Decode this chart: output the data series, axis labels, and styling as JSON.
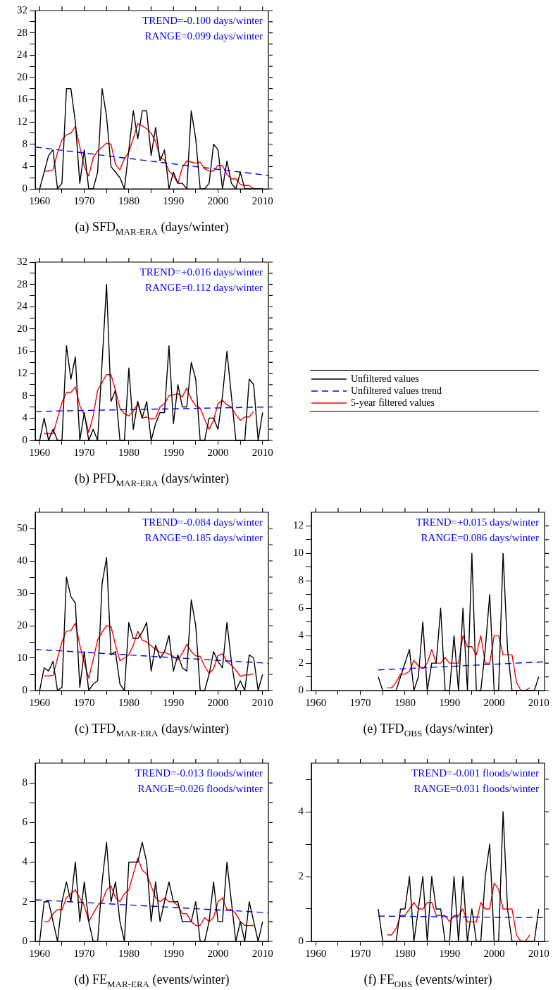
{
  "chart_data": [
    {
      "type": "line",
      "xlabel": "(a) SFD$_{MAR-ERA}$ (days/winter)",
      "annotations": [
        "TREND=-0.100 days/winter",
        "RANGE=0.099 days/winter"
      ],
      "xlim": [
        1959,
        2011.3
      ],
      "xticks": [
        1960,
        {
          "value": 1965,
          "label": null
        },
        1970,
        {
          "value": 1975,
          "label": null
        },
        1980,
        {
          "value": 1985,
          "label": null
        },
        1990,
        {
          "value": 1995,
          "label": null
        },
        2000,
        {
          "value": 2005,
          "label": null
        },
        2010
      ],
      "ylim": [
        0,
        32
      ],
      "yticks": [
        0,
        {
          "value": 2,
          "label": null
        },
        4,
        {
          "value": 6,
          "label": null
        },
        8,
        {
          "value": 10,
          "label": null
        },
        12,
        {
          "value": 14,
          "label": null
        },
        16,
        {
          "value": 18,
          "label": null
        },
        20,
        {
          "value": 22,
          "label": null
        },
        24,
        {
          "value": 26,
          "label": null
        },
        28,
        {
          "value": 30,
          "label": null
        },
        32
      ],
      "series": [
        {
          "color": "#000000",
          "x": [
            1960,
            1961,
            1962,
            1963,
            1964,
            1965,
            1966,
            1967,
            1968,
            1969,
            1970,
            1971,
            1972,
            1973,
            1974,
            1975,
            1976,
            1977,
            1978,
            1979,
            1980,
            1981,
            1982,
            1983,
            1984,
            1985,
            1986,
            1987,
            1988,
            1989,
            1990,
            1991,
            1992,
            1993,
            1994,
            1995,
            1996,
            1997,
            1998,
            1999,
            2000,
            2001,
            2002,
            2003,
            2004,
            2005,
            2006,
            2007,
            2008,
            2009,
            2010
          ],
          "values": [
            0,
            3,
            6,
            7,
            0,
            1,
            18,
            18,
            12,
            1,
            7,
            0,
            0,
            3,
            18,
            13,
            4,
            3,
            2,
            0,
            7,
            14,
            9,
            14,
            14,
            6,
            11,
            5,
            7,
            0,
            3,
            1,
            1,
            0,
            14,
            9,
            0,
            0,
            1,
            8,
            7,
            0,
            5,
            1,
            0,
            3,
            0,
            0,
            0,
            0,
            0
          ]
        },
        {
          "color": "#0000ff",
          "line_style": "dashed",
          "x": [
            1959,
            2011.3
          ],
          "values": [
            7.5,
            2.4
          ]
        },
        {
          "color": "#ff0000",
          "x": [
            1961,
            1962,
            1963,
            1964,
            1965,
            1966,
            1967,
            1968,
            1969,
            1970,
            1971,
            1972,
            1973,
            1974,
            1975,
            1976,
            1977,
            1978,
            1979,
            1980,
            1981,
            1982,
            1983,
            1984,
            1985,
            1986,
            1987,
            1988,
            1989,
            1990,
            1991,
            1992,
            1993,
            1994,
            1995,
            1996,
            1997,
            1998,
            1999,
            2000,
            2001,
            2002,
            2003,
            2004,
            2005,
            2006,
            2007,
            2008
          ],
          "values": [
            3.2,
            3.2,
            3.4,
            6.5,
            8.8,
            9.7,
            10,
            11.2,
            7.5,
            4,
            2.3,
            5.6,
            6.8,
            7.5,
            8.2,
            8,
            4.4,
            3.4,
            5.4,
            6.6,
            9,
            11.7,
            11.3,
            10.8,
            10,
            8.5,
            5.7,
            5.2,
            3.2,
            2.4,
            1,
            3.8,
            5,
            4.8,
            4.6,
            4.8,
            3.6,
            3.2,
            3.2,
            4.2,
            4.2,
            2.6,
            1.8,
            1.8,
            0.8,
            0.6,
            0.6,
            0
          ]
        }
      ]
    },
    {
      "type": "line",
      "xlabel": "(b) PFD$_{MAR-ERA}$ (days/winter)",
      "annotations": [
        "TREND=+0.016 days/winter",
        "RANGE=0.112 days/winter"
      ],
      "legend": "right",
      "xlim": [
        1959,
        2011.3
      ],
      "xticks": [
        1960,
        {
          "value": 1965,
          "label": null
        },
        1970,
        {
          "value": 1975,
          "label": null
        },
        1980,
        {
          "value": 1985,
          "label": null
        },
        1990,
        {
          "value": 1995,
          "label": null
        },
        2000,
        {
          "value": 2005,
          "label": null
        },
        2010
      ],
      "ylim": [
        0,
        32
      ],
      "yticks": [
        0,
        {
          "value": 2,
          "label": null
        },
        4,
        {
          "value": 6,
          "label": null
        },
        8,
        {
          "value": 10,
          "label": null
        },
        12,
        {
          "value": 14,
          "label": null
        },
        16,
        {
          "value": 18,
          "label": null
        },
        20,
        {
          "value": 22,
          "label": null
        },
        24,
        {
          "value": 26,
          "label": null
        },
        28,
        {
          "value": 30,
          "label": null
        },
        32
      ],
      "series": [
        {
          "name": "Unfiltered values",
          "color": "#000000",
          "x": [
            1959,
            1960,
            1961,
            1962,
            1963,
            1964,
            1965,
            1966,
            1967,
            1968,
            1969,
            1970,
            1971,
            1972,
            1973,
            1974,
            1975,
            1976,
            1977,
            1978,
            1979,
            1980,
            1981,
            1982,
            1983,
            1984,
            1985,
            1986,
            1987,
            1988,
            1989,
            1990,
            1991,
            1992,
            1993,
            1994,
            1995,
            1996,
            1997,
            1998,
            1999,
            2000,
            2001,
            2002,
            2003,
            2004,
            2005,
            2006,
            2007,
            2008,
            2009,
            2010
          ],
          "values": [
            0,
            0,
            4,
            0,
            2,
            0,
            0,
            17,
            11,
            15,
            0,
            5,
            0,
            2,
            0,
            14,
            28,
            7,
            9,
            0,
            0,
            13,
            2,
            7,
            4,
            7,
            0,
            3,
            5,
            5,
            17,
            3,
            10,
            6,
            6,
            14,
            11,
            0,
            0,
            4,
            4,
            2,
            8,
            16,
            8,
            0,
            0,
            0,
            11,
            10,
            0,
            5
          ]
        },
        {
          "name": "Unfiltered values trend",
          "color": "#0000ff",
          "line_style": "dashed",
          "x": [
            1959,
            2011.3
          ],
          "values": [
            5.2,
            6.0
          ]
        },
        {
          "name": "5-year filtered values",
          "color": "#ff0000",
          "x": [
            1961,
            1962,
            1963,
            1964,
            1965,
            1966,
            1967,
            1968,
            1969,
            1970,
            1971,
            1972,
            1973,
            1974,
            1975,
            1976,
            1977,
            1978,
            1979,
            1980,
            1981,
            1982,
            1983,
            1984,
            1985,
            1986,
            1987,
            1988,
            1989,
            1990,
            1991,
            1992,
            1993,
            1994,
            1995,
            1996,
            1997,
            1998,
            1999,
            2000,
            2001,
            2002,
            2003,
            2004,
            2005,
            2006,
            2007,
            2008
          ],
          "values": [
            1.2,
            1.2,
            1.2,
            4,
            6.8,
            8.6,
            8.6,
            9.6,
            6.2,
            4.6,
            1.4,
            4.4,
            9,
            10.4,
            11.8,
            11.8,
            9,
            5.8,
            4.8,
            4.4,
            5.2,
            6.6,
            4,
            4.2,
            3.8,
            4,
            6,
            6.6,
            8,
            8.2,
            8.4,
            7.8,
            9.4,
            7.4,
            6.2,
            5.8,
            3.8,
            2,
            3.6,
            6.6,
            7.2,
            6.4,
            6,
            4.6,
            3.6,
            4.2,
            4.2,
            5.2
          ]
        }
      ]
    },
    {
      "type": "line",
      "xlabel": "(c) TFD$_{MAR-ERA}$ (days/winter)",
      "annotations": [
        "TREND=-0.084 days/winter",
        "RANGE=0.185 days/winter"
      ],
      "xlim": [
        1959,
        2011.3
      ],
      "xticks": [
        1960,
        {
          "value": 1965,
          "label": null
        },
        1970,
        {
          "value": 1975,
          "label": null
        },
        1980,
        {
          "value": 1985,
          "label": null
        },
        1990,
        {
          "value": 1995,
          "label": null
        },
        2000,
        {
          "value": 2005,
          "label": null
        },
        2010
      ],
      "ylim": [
        0,
        55
      ],
      "yticks": [
        0,
        {
          "value": 5,
          "label": null
        },
        10,
        {
          "value": 15,
          "label": null
        },
        20,
        {
          "value": 25,
          "label": null
        },
        30,
        {
          "value": 35,
          "label": null
        },
        40,
        {
          "value": 45,
          "label": null
        },
        50
      ],
      "series": [
        {
          "color": "#000000",
          "x": [
            1960,
            1961,
            1962,
            1963,
            1964,
            1965,
            1966,
            1967,
            1968,
            1969,
            1970,
            1971,
            1972,
            1973,
            1974,
            1975,
            1976,
            1977,
            1978,
            1979,
            1980,
            1981,
            1982,
            1983,
            1984,
            1985,
            1986,
            1987,
            1988,
            1989,
            1990,
            1991,
            1992,
            1993,
            1994,
            1995,
            1996,
            1997,
            1998,
            1999,
            2000,
            2001,
            2002,
            2003,
            2004,
            2005,
            2006,
            2007,
            2008,
            2009,
            2010
          ],
          "values": [
            0,
            7,
            6,
            9,
            0,
            1,
            35,
            29,
            27,
            1,
            12,
            0,
            2,
            3,
            33,
            41,
            11,
            12,
            2,
            0,
            21,
            16,
            16,
            18,
            21,
            6,
            14,
            10,
            12,
            17,
            6,
            11,
            7,
            6,
            28,
            20,
            0,
            0,
            5,
            12,
            9,
            7,
            21,
            9,
            0,
            3,
            0,
            11,
            10,
            0,
            5
          ]
        },
        {
          "color": "#0000ff",
          "line_style": "dashed",
          "x": [
            1959,
            2011.3
          ],
          "values": [
            12.7,
            8.4
          ]
        },
        {
          "color": "#ff0000",
          "x": [
            1961,
            1962,
            1963,
            1964,
            1965,
            1966,
            1967,
            1968,
            1969,
            1970,
            1971,
            1972,
            1973,
            1974,
            1975,
            1976,
            1977,
            1978,
            1979,
            1980,
            1981,
            1982,
            1983,
            1984,
            1985,
            1986,
            1987,
            1988,
            1989,
            1990,
            1991,
            1992,
            1993,
            1994,
            1995,
            1996,
            1997,
            1998,
            1999,
            2000,
            2001,
            2002,
            2003,
            2004,
            2005,
            2006,
            2007,
            2008
          ],
          "values": [
            4.5,
            4.5,
            4.7,
            10,
            15,
            18.3,
            18.5,
            20.8,
            14,
            8.5,
            3.8,
            9.5,
            15.7,
            18,
            20,
            19.8,
            14,
            9.2,
            10,
            11,
            14,
            18.3,
            15.5,
            15,
            13.8,
            12.7,
            11.8,
            11.8,
            11.2,
            10.5,
            9.4,
            11.5,
            14.3,
            12,
            10.7,
            10.5,
            7.5,
            5.3,
            6.7,
            10.8,
            11.3,
            9,
            7.8,
            6.3,
            4.4,
            4.8,
            4.8,
            5.2
          ]
        }
      ]
    },
    {
      "type": "line",
      "xlabel": "(e) TFD$_{OBS}$ (days/winter)",
      "annotations": [
        "TREND=+0.015 days/winter",
        "RANGE=0.086 days/winter"
      ],
      "xlim": [
        1959,
        2011.3
      ],
      "xticks": [
        1960,
        {
          "value": 1965,
          "label": null
        },
        1970,
        {
          "value": 1975,
          "label": null
        },
        1980,
        {
          "value": 1985,
          "label": null
        },
        1990,
        {
          "value": 1995,
          "label": null
        },
        2000,
        {
          "value": 2005,
          "label": null
        },
        2010
      ],
      "ylim": [
        0,
        13
      ],
      "yticks": [
        0,
        {
          "value": 1,
          "label": null
        },
        2,
        {
          "value": 3,
          "label": null
        },
        4,
        {
          "value": 5,
          "label": null
        },
        6,
        {
          "value": 7,
          "label": null
        },
        8,
        {
          "value": 9,
          "label": null
        },
        10,
        {
          "value": 11,
          "label": null
        },
        12
      ],
      "series": [
        {
          "color": "#000000",
          "x": [
            1974,
            1975,
            1976,
            1977,
            1978,
            1979,
            1980,
            1981,
            1982,
            1983,
            1984,
            1985,
            1986,
            1987,
            1988,
            1989,
            1990,
            1991,
            1992,
            1993,
            1994,
            1995,
            1996,
            1997,
            1998,
            1999,
            2000,
            2001,
            2002,
            2003,
            2004,
            2005,
            2006,
            2007,
            2008,
            2009,
            2010
          ],
          "values": [
            1,
            0,
            0,
            0,
            0,
            1,
            2,
            3,
            0,
            1,
            5,
            0,
            2,
            2,
            6,
            0,
            0,
            4,
            0,
            6,
            0,
            10,
            0,
            0,
            3,
            7,
            0,
            0,
            10,
            3,
            0,
            0,
            0,
            0,
            0,
            0,
            1
          ]
        },
        {
          "color": "#0000ff",
          "line_style": "dashed",
          "x": [
            1974,
            2011.3
          ],
          "values": [
            1.5,
            2.1
          ]
        },
        {
          "color": "#ff0000",
          "x": [
            1976,
            1977,
            1978,
            1979,
            1980,
            1981,
            1982,
            1983,
            1984,
            1985,
            1986,
            1987,
            1988,
            1989,
            1990,
            1991,
            1992,
            1993,
            1994,
            1995,
            1996,
            1997,
            1998,
            1999,
            2000,
            2001,
            2002,
            2003,
            2004,
            2005,
            2006,
            2007,
            2008
          ],
          "values": [
            0.2,
            0.2,
            0.6,
            1.2,
            1.2,
            1.4,
            2.2,
            1.8,
            1.6,
            2,
            3,
            2,
            2,
            2.4,
            2,
            2,
            2,
            4,
            3.2,
            3.2,
            2.6,
            4,
            2,
            2,
            4,
            4,
            2.6,
            2.6,
            2.6,
            0.6,
            0,
            0,
            0.2
          ]
        }
      ]
    },
    {
      "type": "line",
      "xlabel": "(d) FE$_{MAR-ERA}$ (events/winter)",
      "annotations": [
        "TREND=-0.013 floods/winter",
        "RANGE=0.026 floods/winter"
      ],
      "xlim": [
        1959,
        2011.3
      ],
      "xticks": [
        1960,
        {
          "value": 1965,
          "label": null
        },
        1970,
        {
          "value": 1975,
          "label": null
        },
        1980,
        {
          "value": 1985,
          "label": null
        },
        1990,
        {
          "value": 1995,
          "label": null
        },
        2000,
        {
          "value": 2005,
          "label": null
        },
        2010
      ],
      "ylim": [
        0,
        9
      ],
      "yticks": [
        0,
        {
          "value": 1,
          "label": null
        },
        2,
        {
          "value": 3,
          "label": null
        },
        4,
        {
          "value": 5,
          "label": null
        },
        6,
        {
          "value": 7,
          "label": null
        },
        8
      ],
      "series": [
        {
          "color": "#000000",
          "x": [
            1960,
            1961,
            1962,
            1963,
            1964,
            1965,
            1966,
            1967,
            1968,
            1969,
            1970,
            1971,
            1972,
            1973,
            1974,
            1975,
            1976,
            1977,
            1978,
            1979,
            1980,
            1981,
            1982,
            1983,
            1984,
            1985,
            1986,
            1987,
            1988,
            1989,
            1990,
            1991,
            1992,
            1993,
            1994,
            1995,
            1996,
            1997,
            1998,
            1999,
            2000,
            2001,
            2002,
            2003,
            2004,
            2005,
            2006,
            2007,
            2008,
            2009,
            2010
          ],
          "values": [
            0,
            2,
            2,
            1,
            0,
            2,
            3,
            2,
            4,
            1,
            3,
            1,
            0,
            0,
            3,
            5,
            2,
            3,
            1,
            0,
            4,
            4,
            4,
            5,
            4,
            1,
            3,
            1,
            2,
            3,
            2,
            2,
            1,
            1,
            1,
            2,
            0,
            0,
            1,
            3,
            1,
            1,
            4,
            2,
            0,
            1,
            0,
            2,
            1,
            0,
            1
          ]
        },
        {
          "color": "#0000ff",
          "line_style": "dashed",
          "x": [
            1959,
            2011.3
          ],
          "values": [
            2.1,
            1.45
          ]
        },
        {
          "color": "#ff0000",
          "x": [
            1961,
            1962,
            1963,
            1964,
            1965,
            1966,
            1967,
            1968,
            1969,
            1970,
            1971,
            1972,
            1973,
            1974,
            1975,
            1976,
            1977,
            1978,
            1979,
            1980,
            1981,
            1982,
            1983,
            1984,
            1985,
            1986,
            1987,
            1988,
            1989,
            1990,
            1991,
            1992,
            1993,
            1994,
            1995,
            1996,
            1997,
            1998,
            1999,
            2000,
            2001,
            2002,
            2003,
            2004,
            2005,
            2006,
            2007,
            2008
          ],
          "values": [
            1,
            1,
            1.4,
            1.6,
            1.6,
            2.2,
            2.4,
            2.6,
            2.2,
            1.8,
            1,
            1.4,
            1.8,
            2,
            2.6,
            2.8,
            2.2,
            2,
            2.4,
            2.6,
            3.4,
            4.2,
            3.6,
            3.4,
            2.8,
            2.2,
            2,
            2.2,
            2,
            2,
            1.8,
            1.4,
            1.4,
            1,
            0.8,
            0.8,
            1.2,
            1,
            1.2,
            2,
            2.2,
            1.6,
            1.6,
            1.4,
            1,
            0.8,
            0.8,
            0.8
          ]
        }
      ]
    },
    {
      "type": "line",
      "xlabel": "(f) FE$_{OBS}$ (events/winter)",
      "annotations": [
        "TREND=-0.001 floods/winter",
        "RANGE=0.031 floods/winter"
      ],
      "xlim": [
        1959,
        2011.3
      ],
      "xticks": [
        1960,
        {
          "value": 1965,
          "label": null
        },
        1970,
        {
          "value": 1975,
          "label": null
        },
        1980,
        {
          "value": 1985,
          "label": null
        },
        1990,
        {
          "value": 1995,
          "label": null
        },
        2000,
        {
          "value": 2005,
          "label": null
        },
        2010
      ],
      "ylim": [
        0,
        5.5
      ],
      "yticks": [
        0,
        {
          "value": 1,
          "label": null
        },
        2,
        {
          "value": 3,
          "label": null
        },
        4,
        {
          "value": 5,
          "label": null
        }
      ],
      "series": [
        {
          "color": "#000000",
          "x": [
            1974,
            1975,
            1976,
            1977,
            1978,
            1979,
            1980,
            1981,
            1982,
            1983,
            1984,
            1985,
            1986,
            1987,
            1988,
            1989,
            1990,
            1991,
            1992,
            1993,
            1994,
            1995,
            1996,
            1997,
            1998,
            1999,
            2000,
            2001,
            2002,
            2003,
            2004,
            2005,
            2006,
            2007,
            2008,
            2009,
            2010
          ],
          "values": [
            1,
            0,
            0,
            0,
            0,
            1,
            1,
            2,
            0,
            1,
            2,
            0,
            2,
            1,
            1,
            0,
            0,
            2,
            0,
            2,
            0,
            1,
            0,
            0,
            2,
            3,
            0,
            0,
            4,
            1,
            0,
            0,
            0,
            0,
            0,
            0,
            1
          ]
        },
        {
          "color": "#0000ff",
          "line_style": "dashed",
          "x": [
            1974,
            2011.3
          ],
          "values": [
            0.78,
            0.73
          ]
        },
        {
          "color": "#ff0000",
          "x": [
            1976,
            1977,
            1978,
            1979,
            1980,
            1981,
            1982,
            1983,
            1984,
            1985,
            1986,
            1987,
            1988,
            1989,
            1990,
            1991,
            1992,
            1993,
            1994,
            1995,
            1996,
            1997,
            1998,
            1999,
            2000,
            2001,
            2002,
            2003,
            2004,
            2005,
            2006,
            2007,
            2008
          ],
          "values": [
            0.2,
            0.2,
            0.4,
            0.8,
            0.8,
            1,
            1.2,
            1,
            1,
            1.2,
            1.2,
            0.8,
            0.8,
            0.8,
            0.6,
            0.8,
            0.8,
            1,
            0.6,
            0.6,
            0.6,
            1.2,
            1,
            1,
            1.8,
            1.6,
            1,
            1,
            1,
            0.2,
            0,
            0,
            0.2
          ]
        }
      ]
    }
  ]
}
